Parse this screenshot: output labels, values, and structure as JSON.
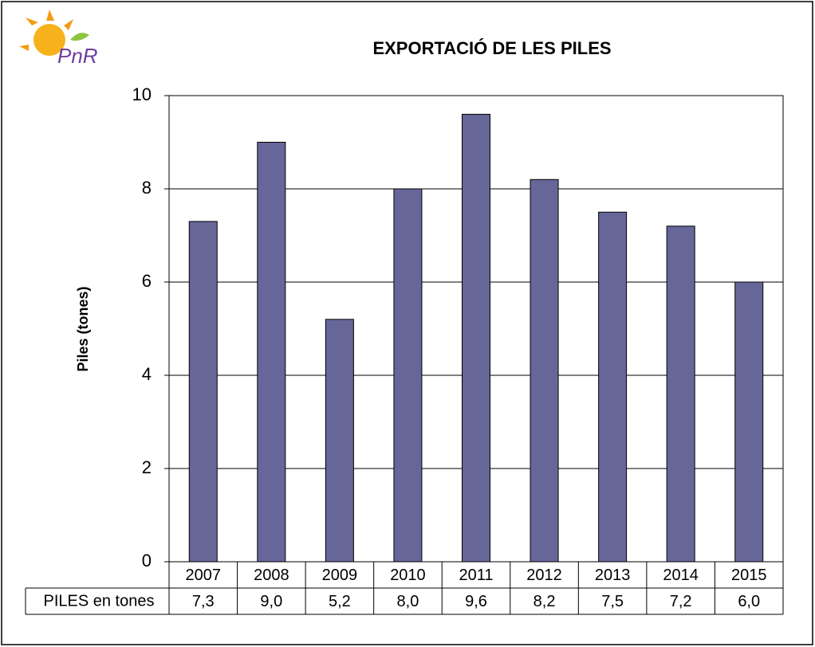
{
  "chart_data": {
    "type": "bar",
    "title": "EXPORTACIÓ DE LES PILES",
    "logo": "PnR",
    "y_label": "Piles (tones)",
    "table_label": "PILES en tones",
    "categories": [
      "2007",
      "2008",
      "2009",
      "2010",
      "2011",
      "2012",
      "2013",
      "2014",
      "2015"
    ],
    "values": [
      7.3,
      9.0,
      5.2,
      8.0,
      9.6,
      8.2,
      7.5,
      7.2,
      6.0
    ],
    "value_labels": [
      "7,3",
      "9,0",
      "5,2",
      "8,0",
      "9,6",
      "8,2",
      "7,5",
      "7,2",
      "6,0"
    ],
    "color": "#666699",
    "ylim": [
      0,
      10
    ],
    "yticks": [
      0,
      2,
      4,
      6,
      8,
      10
    ],
    "grid": true
  }
}
